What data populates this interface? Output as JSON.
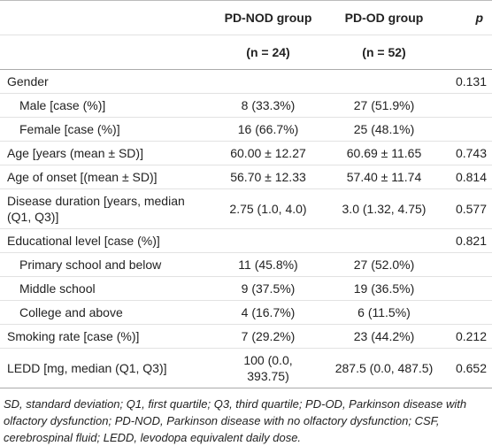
{
  "table": {
    "header": [
      "PD-NOD group",
      "PD-OD group",
      "p"
    ],
    "subheader": [
      "(n = 24)",
      "(n = 52)"
    ],
    "rows": [
      [
        "Gender",
        "0.131"
      ],
      [
        "Male [case (%)]",
        "8 (33.3%)",
        "27 (51.9%)"
      ],
      [
        "Female [case (%)]",
        "16 (66.7%)",
        "25 (48.1%)"
      ],
      [
        "Age [years (mean ± SD)]",
        "60.00 ± 12.27",
        "60.69 ± 11.65",
        "0.743"
      ],
      [
        "Age of onset [(mean ± SD)]",
        "56.70 ± 12.33",
        "57.40 ± 11.74",
        "0.814"
      ],
      [
        "Disease duration [years, median (Q1, Q3)]",
        "2.75 (1.0, 4.0)",
        "3.0 (1.32, 4.75)",
        "0.577"
      ],
      [
        "Educational level [case (%)]",
        "0.821"
      ],
      [
        "Primary school and below",
        "11 (45.8%)",
        "27 (52.0%)"
      ],
      [
        "Middle school",
        "9 (37.5%)",
        "19 (36.5%)"
      ],
      [
        "College and above",
        "4 (16.7%)",
        "6 (11.5%)"
      ],
      [
        "Smoking rate [case (%)]",
        "7 (29.2%)",
        "23 (44.2%)",
        "0.212"
      ],
      [
        "LEDD [mg, median (Q1, Q3)]",
        "100 (0.0, 393.75)",
        "287.5 (0.0, 487.5)",
        "0.652"
      ]
    ],
    "footnote": "SD, standard deviation; Q1, first quartile; Q3, third quartile; PD-OD, Parkinson disease with olfactory dysfunction; PD-NOD, Parkinson disease with no olfactory dysfunction; CSF, cerebrospinal fluid; LEDD, levodopa equivalent daily dose."
  }
}
